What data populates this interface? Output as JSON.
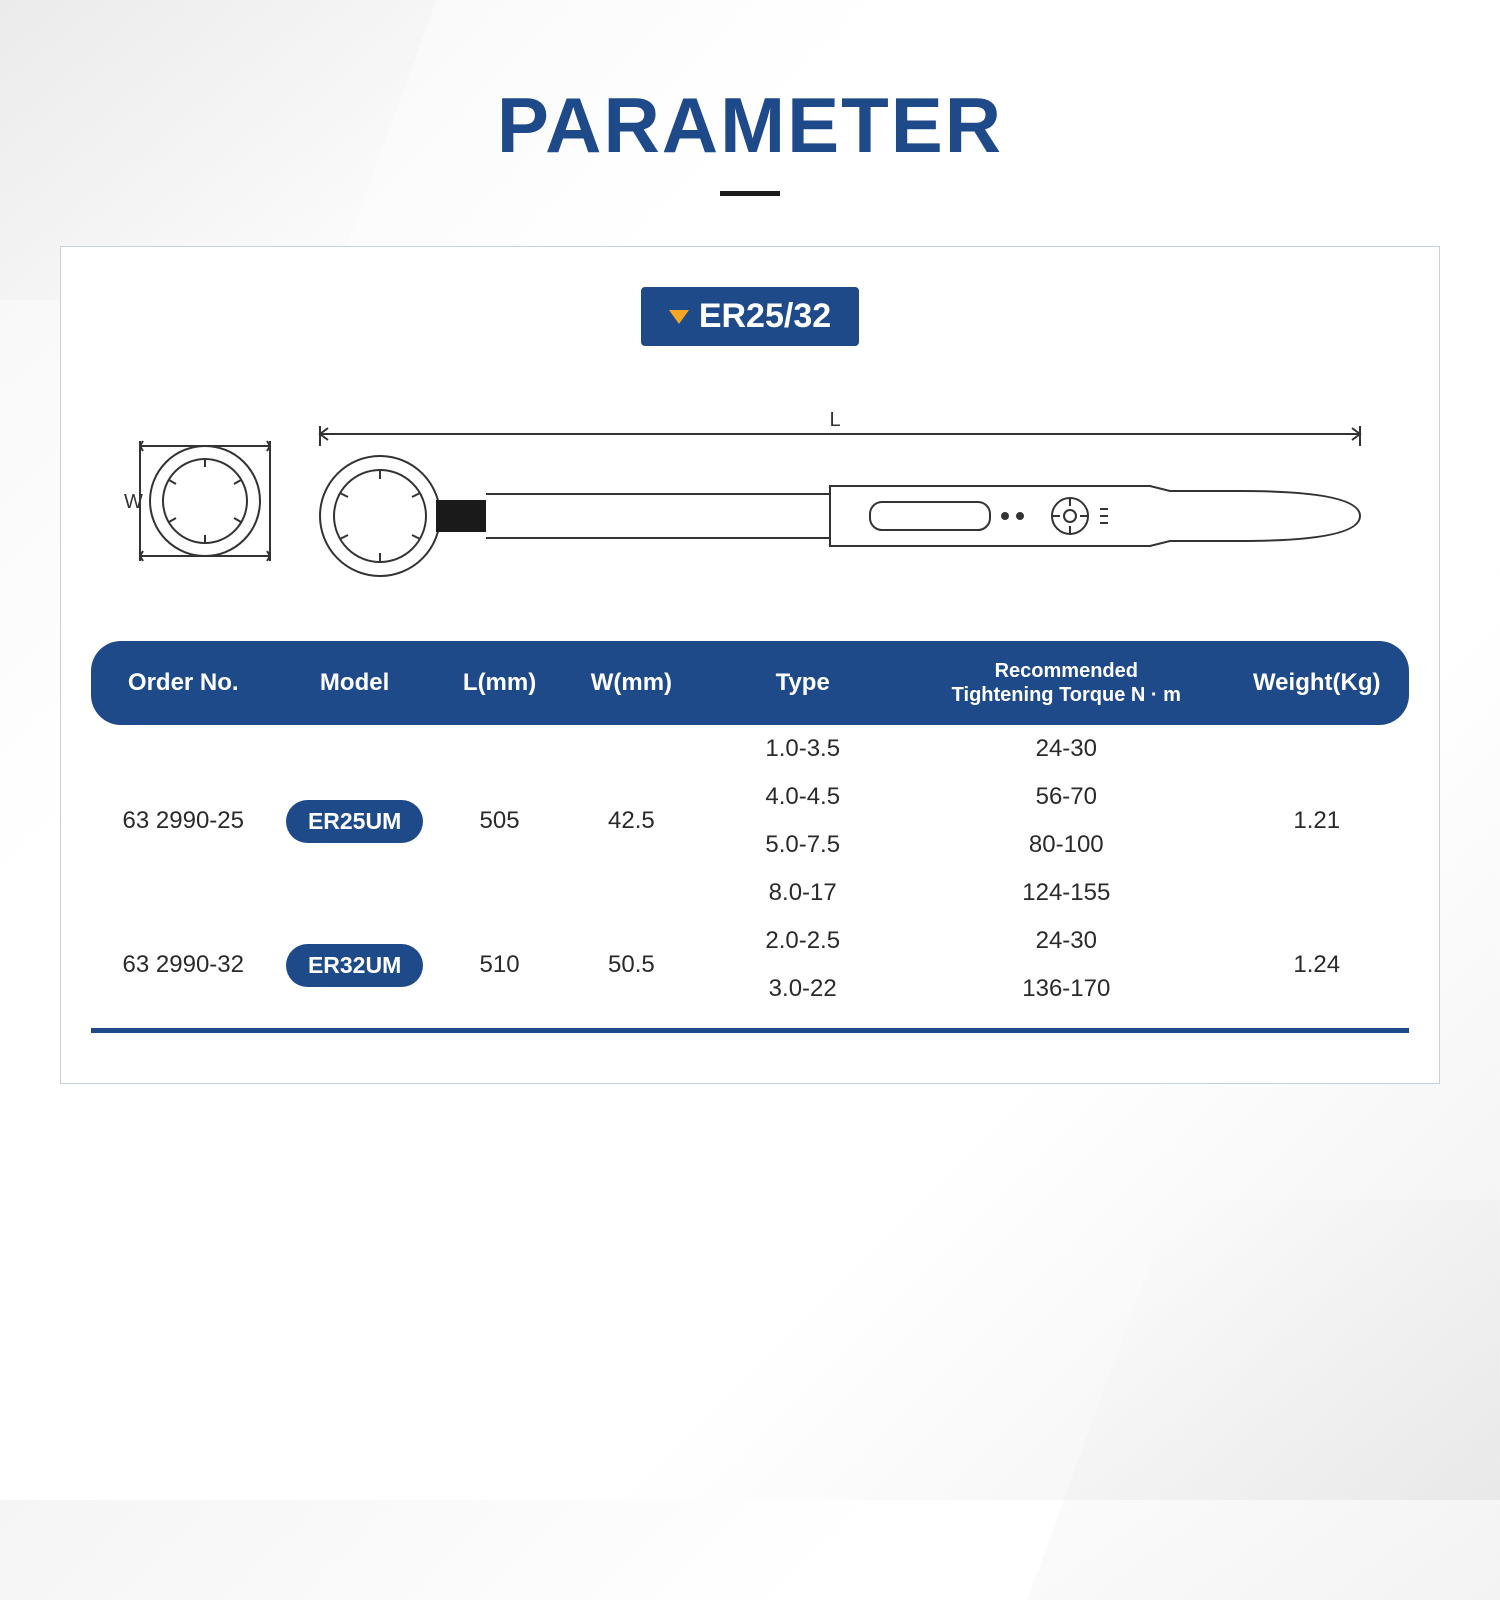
{
  "title": "PARAMETER",
  "colors": {
    "title": "#1f4a8a",
    "badge_bg": "#1f4a8a",
    "badge_text": "#ffffff",
    "badge_triangle": "#f5a623",
    "header_bg": "#1f4a8a",
    "pill_bg": "#1f4a8a",
    "rule": "#1f4a8a",
    "text": "#2a2a2a",
    "panel_border": "#c8d0d8"
  },
  "badge": "ER25/32",
  "diagram": {
    "w_label": "W",
    "l_label": "L"
  },
  "table": {
    "columns": [
      "Order No.",
      "Model",
      "L(mm)",
      "W(mm)",
      "Type",
      "Recommended\nTightening Torque  N · m",
      "Weight(Kg)"
    ],
    "col_widths": [
      "14%",
      "12%",
      "10%",
      "10%",
      "16%",
      "24%",
      "14%"
    ],
    "rows": [
      {
        "order_no": "63 2990-25",
        "model": "ER25UM",
        "l": "505",
        "w": "42.5",
        "weight": "1.21",
        "sub": [
          {
            "type": "1.0-3.5",
            "torque": "24-30"
          },
          {
            "type": "4.0-4.5",
            "torque": "56-70"
          },
          {
            "type": "5.0-7.5",
            "torque": "80-100"
          },
          {
            "type": "8.0-17",
            "torque": "124-155"
          }
        ]
      },
      {
        "order_no": "63 2990-32",
        "model": "ER32UM",
        "l": "510",
        "w": "50.5",
        "weight": "1.24",
        "sub": [
          {
            "type": "2.0-2.5",
            "torque": "24-30"
          },
          {
            "type": "3.0-22",
            "torque": "136-170"
          }
        ]
      }
    ]
  }
}
